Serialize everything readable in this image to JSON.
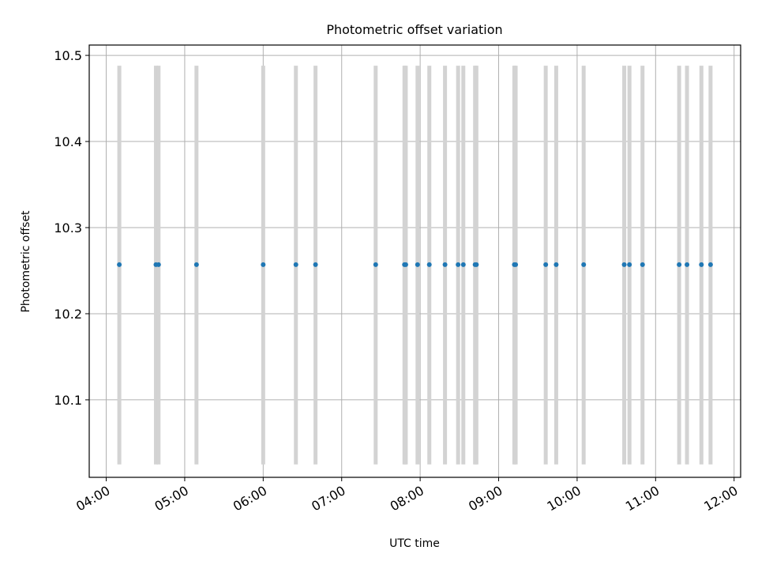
{
  "chart_data": {
    "type": "scatter",
    "title": "Photometric offset variation",
    "xlabel": "UTC time",
    "ylabel": "Photometric offset",
    "xlim": [
      "03:47",
      "12:05"
    ],
    "ylim": [
      10.01,
      10.512
    ],
    "xticks": [
      "04:00",
      "05:00",
      "06:00",
      "07:00",
      "08:00",
      "09:00",
      "10:00",
      "11:00",
      "12:00"
    ],
    "yticks": [
      10.1,
      10.2,
      10.3,
      10.4,
      10.5
    ],
    "grid": true,
    "marker_color": "#1f77b4",
    "band_color": "#d3d3d3",
    "bands_ylim": [
      10.025,
      10.488
    ],
    "series": [
      {
        "x": [
          "04:10",
          "04:38",
          "04:40",
          "05:09",
          "06:00",
          "06:25",
          "06:40",
          "07:26",
          "07:48",
          "07:49",
          "07:58",
          "08:07",
          "08:19",
          "08:29",
          "08:33",
          "08:42",
          "08:43",
          "09:12",
          "09:13",
          "09:36",
          "09:44",
          "10:05",
          "10:36",
          "10:40",
          "10:50",
          "11:18",
          "11:24",
          "11:35",
          "11:42"
        ],
        "y": [
          10.257,
          10.257,
          10.257,
          10.257,
          10.257,
          10.257,
          10.257,
          10.257,
          10.257,
          10.257,
          10.257,
          10.257,
          10.257,
          10.257,
          10.257,
          10.257,
          10.257,
          10.257,
          10.257,
          10.257,
          10.257,
          10.257,
          10.257,
          10.257,
          10.257,
          10.257,
          10.257,
          10.257,
          10.257
        ]
      }
    ]
  }
}
